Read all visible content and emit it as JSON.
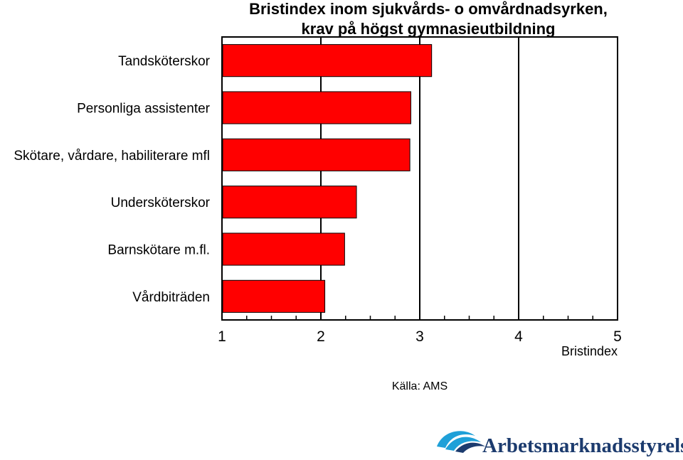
{
  "chart_data": {
    "type": "bar",
    "orientation": "horizontal",
    "title_line1": "Bristindex inom sjukvårds- o omvårdnadsyrken,",
    "title_line2": "krav på högst gymnasieutbildning",
    "categories": [
      "Tandsköterskor",
      "Personliga assistenter",
      "Skötare, vårdare, habiliterare mfl",
      "Undersköterskor",
      "Barnskötare m.fl.",
      "Vårdbiträden"
    ],
    "values": [
      3.12,
      2.91,
      2.9,
      2.36,
      2.24,
      2.04
    ],
    "xlabel": "Bristindex",
    "xlim": [
      1,
      5
    ],
    "xticks": [
      "1",
      "2",
      "3",
      "4",
      "5"
    ],
    "grid": "vertical",
    "bar_color": "#ff0000"
  },
  "source": "Källa: AMS",
  "logo": {
    "text": "Arbetsmarknadsstyrelsen",
    "color": "#1c3b6e",
    "mark_color": "#1fa0d8"
  }
}
